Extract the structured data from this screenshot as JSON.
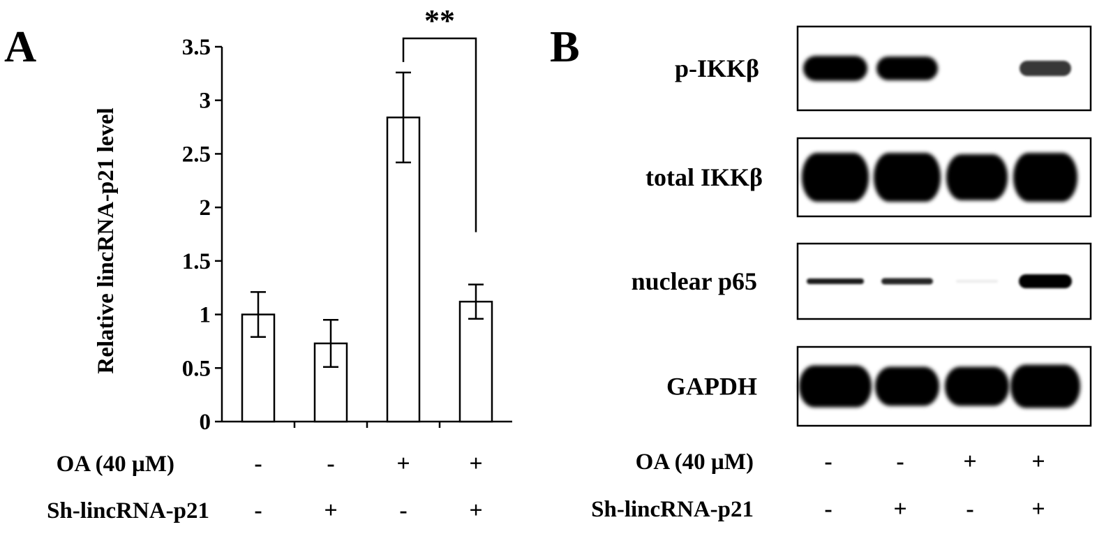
{
  "panels": {
    "a_letter": "A",
    "b_letter": "B"
  },
  "chart_data": {
    "type": "bar",
    "ylabel": "Relative lincRNA-p21 level",
    "xlabel": "",
    "ylim": [
      0,
      3.5
    ],
    "yticks": [
      "0",
      "0.5",
      "1",
      "1.5",
      "2",
      "2.5",
      "3",
      "3.5"
    ],
    "yticks_values": [
      0,
      0.5,
      1,
      1.5,
      2,
      2.5,
      3,
      3.5
    ],
    "values": [
      1.0,
      0.73,
      2.84,
      1.12
    ],
    "errors": [
      0.21,
      0.22,
      0.42,
      0.16
    ],
    "significance": {
      "label": "**",
      "between": [
        2,
        3
      ]
    },
    "conditions": [
      {
        "label": "OA (40 µM)",
        "signs": [
          "-",
          "-",
          "+",
          "+"
        ]
      },
      {
        "label": "Sh-lincRNA-p21",
        "signs": [
          "-",
          "+",
          "-",
          "+"
        ]
      }
    ],
    "colors": {
      "bar_fill": "#ffffff",
      "stroke": "#000000"
    }
  },
  "blot": {
    "rows": [
      {
        "label": "p-IKKβ"
      },
      {
        "label": "total IKKβ"
      },
      {
        "label": "nuclear p65"
      },
      {
        "label": "GAPDH"
      }
    ],
    "conditions": [
      {
        "label": "OA (40 µM)",
        "signs": [
          "-",
          "-",
          "+",
          "+"
        ]
      },
      {
        "label": "Sh-lincRNA-p21",
        "signs": [
          "-",
          "+",
          "-",
          "+"
        ]
      }
    ]
  }
}
